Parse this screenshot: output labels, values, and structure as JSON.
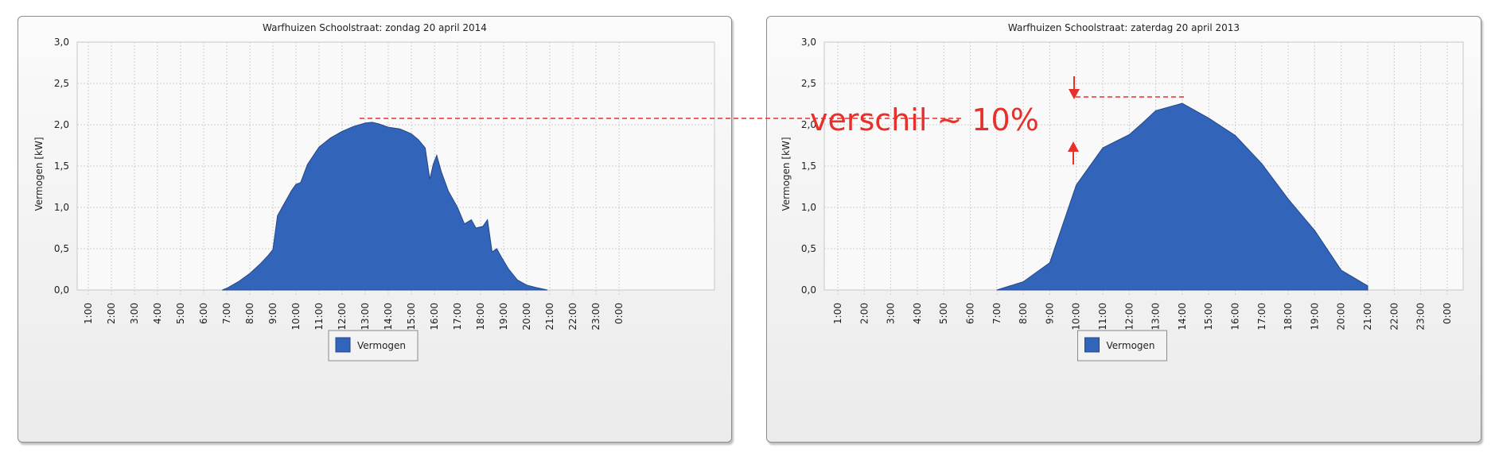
{
  "chart_data": [
    {
      "type": "area",
      "title": "Warfhuizen Schoolstraat: zondag 20 april 2014",
      "xlabel": "",
      "ylabel": "Vermogen [kW]",
      "ylim": [
        0,
        3.0
      ],
      "yticks": [
        "0,0",
        "0,5",
        "1,0",
        "1,5",
        "2,0",
        "2,5",
        "3,0"
      ],
      "xticks": [
        "1:00",
        "2:00",
        "3:00",
        "4:00",
        "5:00",
        "6:00",
        "7:00",
        "8:00",
        "9:00",
        "10:00",
        "11:00",
        "12:00",
        "13:00",
        "14:00",
        "15:00",
        "16:00",
        "17:00",
        "18:00",
        "19:00",
        "20:00",
        "21:00",
        "22:00",
        "23:00",
        "0:00"
      ],
      "grid": true,
      "legend": {
        "position": "bottom",
        "entries": [
          "Vermogen"
        ]
      },
      "color": "#3264b9",
      "series": [
        {
          "name": "Vermogen",
          "x": [
            6.8,
            7.0,
            7.5,
            8.0,
            8.5,
            8.8,
            9.0,
            9.2,
            9.5,
            9.8,
            10.0,
            10.2,
            10.5,
            11.0,
            11.5,
            12.0,
            12.5,
            13.0,
            13.3,
            13.6,
            14.0,
            14.5,
            15.0,
            15.3,
            15.6,
            15.8,
            15.95,
            16.1,
            16.3,
            16.6,
            17.0,
            17.3,
            17.6,
            17.8,
            18.1,
            18.3,
            18.5,
            18.7,
            18.9,
            19.2,
            19.6,
            20.0,
            20.4,
            20.9
          ],
          "values": [
            0.0,
            0.02,
            0.1,
            0.2,
            0.33,
            0.42,
            0.49,
            0.9,
            1.05,
            1.2,
            1.28,
            1.3,
            1.52,
            1.73,
            1.84,
            1.92,
            1.98,
            2.02,
            2.03,
            2.01,
            1.97,
            1.95,
            1.89,
            1.82,
            1.72,
            1.34,
            1.52,
            1.63,
            1.43,
            1.2,
            1.0,
            0.8,
            0.85,
            0.75,
            0.77,
            0.85,
            0.46,
            0.5,
            0.4,
            0.26,
            0.12,
            0.06,
            0.03,
            0.0
          ]
        }
      ]
    },
    {
      "type": "area",
      "title": "Warfhuizen Schoolstraat: zaterdag 20 april 2013",
      "xlabel": "",
      "ylabel": "Vermogen [kW]",
      "ylim": [
        0,
        3.0
      ],
      "yticks": [
        "0,0",
        "0,5",
        "1,0",
        "1,5",
        "2,0",
        "2,5",
        "3,0"
      ],
      "xticks": [
        "1:00",
        "2:00",
        "3:00",
        "4:00",
        "5:00",
        "6:00",
        "7:00",
        "8:00",
        "9:00",
        "10:00",
        "11:00",
        "12:00",
        "13:00",
        "14:00",
        "15:00",
        "16:00",
        "17:00",
        "18:00",
        "19:00",
        "20:00",
        "21:00",
        "22:00",
        "23:00",
        "0:00"
      ],
      "grid": true,
      "legend": {
        "position": "bottom",
        "entries": [
          "Vermogen"
        ]
      },
      "color": "#3264b9",
      "series": [
        {
          "name": "Vermogen",
          "x": [
            7.0,
            8.0,
            9.0,
            10.0,
            11.0,
            12.0,
            12.5,
            13.0,
            14.0,
            15.0,
            16.0,
            17.0,
            18.0,
            19.0,
            20.0,
            21.0
          ],
          "values": [
            0.0,
            0.1,
            0.33,
            1.27,
            1.72,
            1.88,
            2.02,
            2.17,
            2.26,
            2.08,
            1.87,
            1.53,
            1.1,
            0.72,
            0.24,
            0.05
          ]
        }
      ]
    }
  ],
  "annotation": {
    "text": "verschil ~ 10%",
    "color": "#e8302a"
  }
}
